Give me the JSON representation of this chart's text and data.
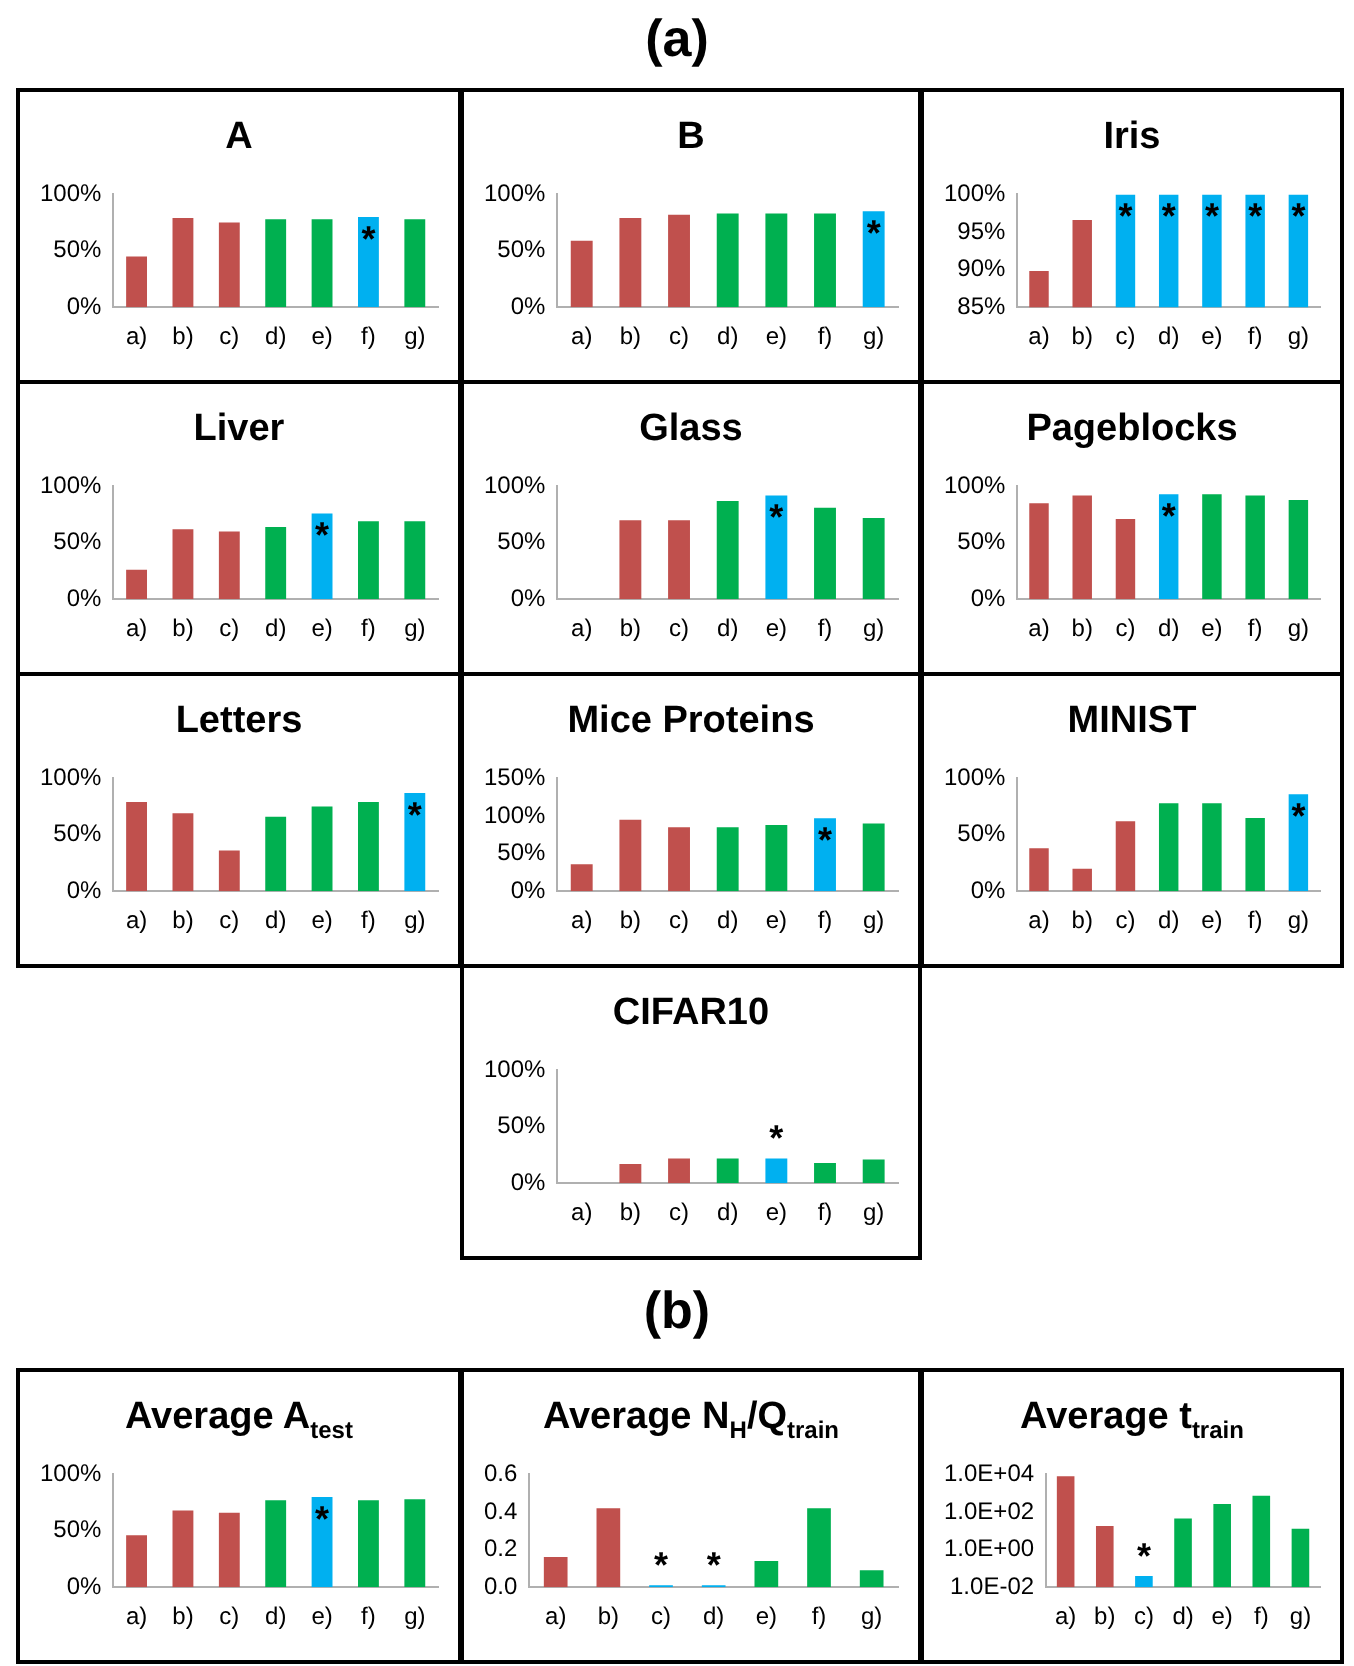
{
  "chart_data": [
    {
      "type": "bar",
      "title": "A",
      "annotations": [
        "(a)",
        {
          "text": "*",
          "x": "f)",
          "y": 80
        }
      ],
      "categories": [
        "a)",
        "b)",
        "c)",
        "d)",
        "e)",
        "f)",
        "g)"
      ],
      "values": [
        45,
        79,
        75,
        78,
        78,
        80,
        78
      ],
      "colors": [
        "#c0504d",
        "#c0504d",
        "#c0504d",
        "#00b050",
        "#00b050",
        "#00b0f0",
        "#00b050"
      ],
      "ylim": [
        0,
        100
      ],
      "yticks": [
        {
          "value": 0,
          "label": "0%"
        },
        {
          "value": 50,
          "label": "50%"
        },
        {
          "value": 100,
          "label": "100%"
        }
      ]
    },
    {
      "type": "bar",
      "title": "B",
      "annotations": [
        {
          "text": "*",
          "x": "g)",
          "y": 85
        }
      ],
      "categories": [
        "a)",
        "b)",
        "c)",
        "d)",
        "e)",
        "f)",
        "g)"
      ],
      "values": [
        59,
        79,
        82,
        83,
        83,
        83,
        85
      ],
      "colors": [
        "#c0504d",
        "#c0504d",
        "#c0504d",
        "#00b050",
        "#00b050",
        "#00b050",
        "#00b0f0"
      ],
      "ylim": [
        0,
        100
      ],
      "yticks": [
        {
          "value": 0,
          "label": "0%"
        },
        {
          "value": 50,
          "label": "50%"
        },
        {
          "value": 100,
          "label": "100%"
        }
      ]
    },
    {
      "type": "bar",
      "title": "Iris",
      "annotations": [
        {
          "text": "*",
          "x": "c)",
          "y": 100
        },
        {
          "text": "*",
          "x": "d)",
          "y": 100
        },
        {
          "text": "*",
          "x": "e)",
          "y": 100
        },
        {
          "text": "*",
          "x": "f)",
          "y": 100
        },
        {
          "text": "*",
          "x": "g)",
          "y": 100
        }
      ],
      "categories": [
        "a)",
        "b)",
        "c)",
        "d)",
        "e)",
        "f)",
        "g)"
      ],
      "values": [
        89.8,
        96.6,
        100,
        100,
        100,
        100,
        100
      ],
      "colors": [
        "#c0504d",
        "#c0504d",
        "#00b0f0",
        "#00b0f0",
        "#00b0f0",
        "#00b0f0",
        "#00b0f0"
      ],
      "ylim": [
        85,
        100
      ],
      "yticks": [
        {
          "value": 85,
          "label": "85%"
        },
        {
          "value": 90,
          "label": "90%"
        },
        {
          "value": 95,
          "label": "95%"
        },
        {
          "value": 100,
          "label": "100%"
        }
      ]
    },
    {
      "type": "bar",
      "title": "Liver",
      "annotations": [
        {
          "text": "*",
          "x": "e)",
          "y": 76
        }
      ],
      "categories": [
        "a)",
        "b)",
        "c)",
        "d)",
        "e)",
        "f)",
        "g)"
      ],
      "values": [
        26,
        62,
        60,
        64,
        76,
        69,
        69
      ],
      "colors": [
        "#c0504d",
        "#c0504d",
        "#c0504d",
        "#00b050",
        "#00b0f0",
        "#00b050",
        "#00b050"
      ],
      "ylim": [
        0,
        100
      ],
      "yticks": [
        {
          "value": 0,
          "label": "0%"
        },
        {
          "value": 50,
          "label": "50%"
        },
        {
          "value": 100,
          "label": "100%"
        }
      ]
    },
    {
      "type": "bar",
      "title": "Glass",
      "annotations": [
        {
          "text": "*",
          "x": "e)",
          "y": 92
        }
      ],
      "categories": [
        "a)",
        "b)",
        "c)",
        "d)",
        "e)",
        "f)",
        "g)"
      ],
      "values": [
        0,
        70,
        70,
        87,
        92,
        81,
        72
      ],
      "colors": [
        "#c0504d",
        "#c0504d",
        "#c0504d",
        "#00b050",
        "#00b0f0",
        "#00b050",
        "#00b050"
      ],
      "ylim": [
        0,
        100
      ],
      "yticks": [
        {
          "value": 0,
          "label": "0%"
        },
        {
          "value": 50,
          "label": "50%"
        },
        {
          "value": 100,
          "label": "100%"
        }
      ]
    },
    {
      "type": "bar",
      "title": "Pageblocks",
      "annotations": [
        {
          "text": "*",
          "x": "d)",
          "y": 93
        }
      ],
      "categories": [
        "a)",
        "b)",
        "c)",
        "d)",
        "e)",
        "f)",
        "g)"
      ],
      "values": [
        85,
        92,
        71,
        93,
        93,
        92,
        88
      ],
      "colors": [
        "#c0504d",
        "#c0504d",
        "#c0504d",
        "#00b0f0",
        "#00b050",
        "#00b050",
        "#00b050"
      ],
      "ylim": [
        0,
        100
      ],
      "yticks": [
        {
          "value": 0,
          "label": "0%"
        },
        {
          "value": 50,
          "label": "50%"
        },
        {
          "value": 100,
          "label": "100%"
        }
      ]
    },
    {
      "type": "bar",
      "title": "Letters",
      "annotations": [
        {
          "text": "*",
          "x": "g)",
          "y": 87
        }
      ],
      "categories": [
        "a)",
        "b)",
        "c)",
        "d)",
        "e)",
        "f)",
        "g)"
      ],
      "values": [
        79,
        69,
        36,
        66,
        75,
        79,
        87
      ],
      "colors": [
        "#c0504d",
        "#c0504d",
        "#c0504d",
        "#00b050",
        "#00b050",
        "#00b050",
        "#00b0f0"
      ],
      "ylim": [
        0,
        100
      ],
      "yticks": [
        {
          "value": 0,
          "label": "0%"
        },
        {
          "value": 50,
          "label": "50%"
        },
        {
          "value": 100,
          "label": "100%"
        }
      ]
    },
    {
      "type": "bar",
      "title": "Mice Proteins",
      "annotations": [
        {
          "text": "*",
          "x": "f)",
          "y": 97
        }
      ],
      "categories": [
        "a)",
        "b)",
        "c)",
        "d)",
        "e)",
        "f)",
        "g)"
      ],
      "values": [
        36,
        95,
        85,
        85,
        88,
        97,
        90
      ],
      "colors": [
        "#c0504d",
        "#c0504d",
        "#c0504d",
        "#00b050",
        "#00b050",
        "#00b0f0",
        "#00b050"
      ],
      "ylim": [
        0,
        150
      ],
      "yticks": [
        {
          "value": 0,
          "label": "0%"
        },
        {
          "value": 50,
          "label": "50%"
        },
        {
          "value": 100,
          "label": "100%"
        },
        {
          "value": 150,
          "label": "150%"
        }
      ]
    },
    {
      "type": "bar",
      "title": "MINIST",
      "annotations": [
        {
          "text": "*",
          "x": "g)",
          "y": 86
        }
      ],
      "categories": [
        "a)",
        "b)",
        "c)",
        "d)",
        "e)",
        "f)",
        "g)"
      ],
      "values": [
        38,
        20,
        62,
        78,
        78,
        65,
        86
      ],
      "colors": [
        "#c0504d",
        "#c0504d",
        "#c0504d",
        "#00b050",
        "#00b050",
        "#00b050",
        "#00b0f0"
      ],
      "ylim": [
        0,
        100
      ],
      "yticks": [
        {
          "value": 0,
          "label": "0%"
        },
        {
          "value": 50,
          "label": "50%"
        },
        {
          "value": 100,
          "label": "100%"
        }
      ]
    },
    {
      "type": "bar",
      "title": "CIFAR10",
      "annotations": [
        {
          "text": "*",
          "x": "e)",
          "y": 22
        }
      ],
      "categories": [
        "a)",
        "b)",
        "c)",
        "d)",
        "e)",
        "f)",
        "g)"
      ],
      "values": [
        0,
        17,
        22,
        22,
        22,
        18,
        21
      ],
      "colors": [
        "#c0504d",
        "#c0504d",
        "#c0504d",
        "#00b050",
        "#00b0f0",
        "#00b050",
        "#00b050"
      ],
      "ylim": [
        0,
        100
      ],
      "yticks": [
        {
          "value": 0,
          "label": "0%"
        },
        {
          "value": 50,
          "label": "50%"
        },
        {
          "value": 100,
          "label": "100%"
        }
      ]
    },
    {
      "type": "bar",
      "title": "Average A$_{test}$",
      "annotations": [
        "(b)",
        {
          "text": "*",
          "x": "e)",
          "y": 80
        }
      ],
      "categories": [
        "a)",
        "b)",
        "c)",
        "d)",
        "e)",
        "f)",
        "g)"
      ],
      "values": [
        46,
        68,
        66,
        77,
        80,
        77,
        78
      ],
      "colors": [
        "#c0504d",
        "#c0504d",
        "#c0504d",
        "#00b050",
        "#00b0f0",
        "#00b050",
        "#00b050"
      ],
      "ylim": [
        0,
        100
      ],
      "yticks": [
        {
          "value": 0,
          "label": "0%"
        },
        {
          "value": 50,
          "label": "50%"
        },
        {
          "value": 100,
          "label": "100%"
        }
      ]
    },
    {
      "type": "bar",
      "title": "Average N$_{H}$/Q$_{train}$",
      "annotations": [
        {
          "text": "*",
          "x": "c)",
          "y": 0.01
        },
        {
          "text": "*",
          "x": "d)",
          "y": 0.01
        }
      ],
      "categories": [
        "a)",
        "b)",
        "c)",
        "d)",
        "e)",
        "f)",
        "g)"
      ],
      "values": [
        0.16,
        0.42,
        0.01,
        0.01,
        0.14,
        0.42,
        0.09
      ],
      "colors": [
        "#c0504d",
        "#c0504d",
        "#00b0f0",
        "#00b0f0",
        "#00b050",
        "#00b050",
        "#00b050"
      ],
      "ylim": [
        0,
        0.6
      ],
      "yticks": [
        {
          "value": 0,
          "label": "0.0"
        },
        {
          "value": 0.2,
          "label": "0.2"
        },
        {
          "value": 0.4,
          "label": "0.4"
        },
        {
          "value": 0.6,
          "label": "0.6"
        }
      ]
    },
    {
      "type": "bar",
      "title": "Average t$_{train}$",
      "log": true,
      "annotations": [
        {
          "text": "*",
          "x": "c)",
          "y": 0.04
        }
      ],
      "categories": [
        "a)",
        "b)",
        "c)",
        "d)",
        "e)",
        "f)",
        "g)"
      ],
      "values": [
        8000,
        18,
        0.04,
        45,
        270,
        740,
        13
      ],
      "colors": [
        "#c0504d",
        "#c0504d",
        "#00b0f0",
        "#00b050",
        "#00b050",
        "#00b050",
        "#00b050"
      ],
      "ylim": [
        0.01,
        10000
      ],
      "yticks": [
        {
          "value": 0.01,
          "label": "1.0E-02"
        },
        {
          "value": 1,
          "label": "1.0E+00"
        },
        {
          "value": 100,
          "label": "1.0E+02"
        },
        {
          "value": 10000,
          "label": "1.0E+04"
        }
      ]
    }
  ]
}
